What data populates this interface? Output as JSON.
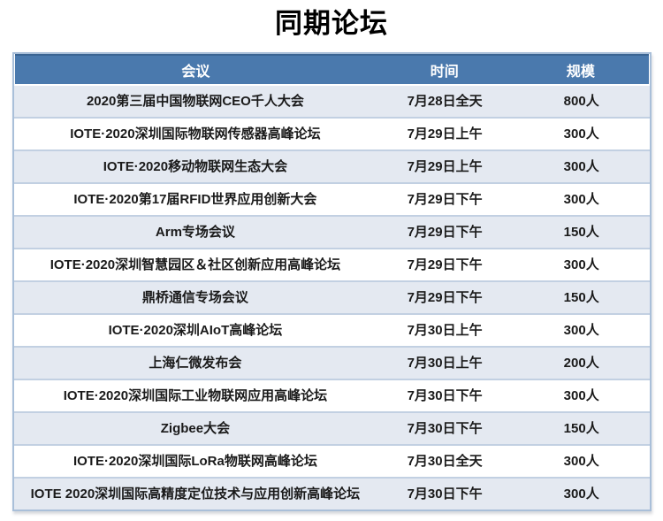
{
  "page": {
    "title": "同期论坛"
  },
  "table": {
    "columns": [
      "会议",
      "时间",
      "规模"
    ],
    "rows": [
      {
        "conference": "2020第三届中国物联网CEO千人大会",
        "time": "7月28日全天",
        "scale": "800人"
      },
      {
        "conference": "IOTE·2020深圳国际物联网传感器高峰论坛",
        "time": "7月29日上午",
        "scale": "300人"
      },
      {
        "conference": "IOTE·2020移动物联网生态大会",
        "time": "7月29日上午",
        "scale": "300人"
      },
      {
        "conference": "IOTE·2020第17届RFID世界应用创新大会",
        "time": "7月29日下午",
        "scale": "300人"
      },
      {
        "conference": "Arm专场会议",
        "time": "7月29日下午",
        "scale": "150人"
      },
      {
        "conference": "IOTE·2020深圳智慧园区＆社区创新应用高峰论坛",
        "time": "7月29日下午",
        "scale": "300人"
      },
      {
        "conference": "鼎桥通信专场会议",
        "time": "7月29日下午",
        "scale": "150人"
      },
      {
        "conference": "IOTE·2020深圳AIoT高峰论坛",
        "time": "7月30日上午",
        "scale": "300人"
      },
      {
        "conference": "上海仁微发布会",
        "time": "7月30日上午",
        "scale": "200人"
      },
      {
        "conference": "IOTE·2020深圳国际工业物联网应用高峰论坛",
        "time": "7月30日下午",
        "scale": "300人"
      },
      {
        "conference": "Zigbee大会",
        "time": "7月30日下午",
        "scale": "150人"
      },
      {
        "conference": "IOTE·2020深圳国际LoRa物联网高峰论坛",
        "time": "7月30日全天",
        "scale": "300人"
      },
      {
        "conference": "IOTE 2020深圳国际高精度定位技术与应用创新高峰论坛",
        "time": "7月30日下午",
        "scale": "300人"
      }
    ]
  },
  "colors": {
    "header_bg": "#4A79AD",
    "header_top_edge": "#3A6492",
    "header_text": "#FFFFFF",
    "banded_row_bg": "#E4E9F1",
    "row_separator": "#C2D0E2",
    "outer_border": "#A9BFD9",
    "body_text": "#1A1A1A"
  }
}
